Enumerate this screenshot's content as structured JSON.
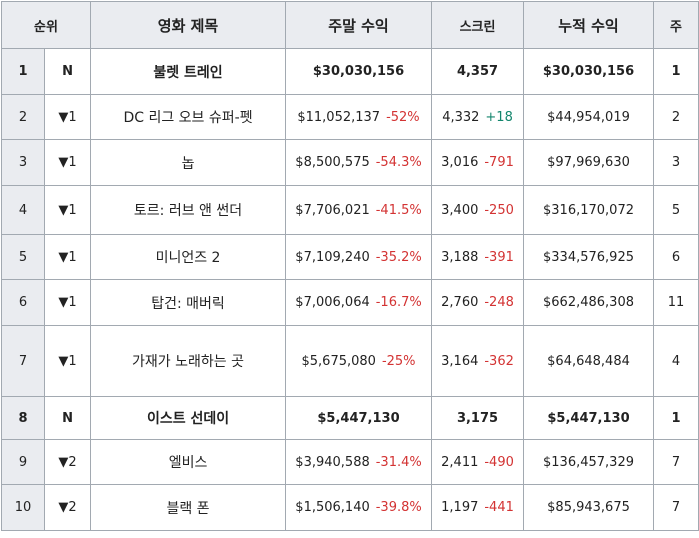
{
  "headers": {
    "rank": "순위",
    "change": "",
    "title": "영화 제목",
    "weekend": "주말 수익",
    "screens": "스크린",
    "total": "누적 수익",
    "weeks": "주"
  },
  "rows": [
    {
      "rank": "1",
      "change": "N",
      "title": "불렛 트레인",
      "weekend": "$30,030,156",
      "weekend_pct": "",
      "screens": "4,357",
      "screens_delta": "",
      "total": "$30,030,156",
      "weeks": "1",
      "is_new": true
    },
    {
      "rank": "2",
      "change": "▼1",
      "title": "DC 리그 오브 슈퍼-펫",
      "weekend": "$11,052,137",
      "weekend_pct": "-52%",
      "screens": "4,332",
      "screens_delta": "+18",
      "total": "$44,954,019",
      "weeks": "2",
      "is_new": false
    },
    {
      "rank": "3",
      "change": "▼1",
      "title": "놉",
      "weekend": "$8,500,575",
      "weekend_pct": "-54.3%",
      "screens": "3,016",
      "screens_delta": "-791",
      "total": "$97,969,630",
      "weeks": "3",
      "is_new": false
    },
    {
      "rank": "4",
      "change": "▼1",
      "title": "토르: 러브 앤 썬더",
      "weekend": "$7,706,021",
      "weekend_pct": "-41.5%",
      "screens": "3,400",
      "screens_delta": "-250",
      "total": "$316,170,072",
      "weeks": "5",
      "is_new": false
    },
    {
      "rank": "5",
      "change": "▼1",
      "title": "미니언즈 2",
      "weekend": "$7,109,240",
      "weekend_pct": "-35.2%",
      "screens": "3,188",
      "screens_delta": "-391",
      "total": "$334,576,925",
      "weeks": "6",
      "is_new": false
    },
    {
      "rank": "6",
      "change": "▼1",
      "title": "탑건: 매버릭",
      "weekend": "$7,006,064",
      "weekend_pct": "-16.7%",
      "screens": "2,760",
      "screens_delta": "-248",
      "total": "$662,486,308",
      "weeks": "11",
      "is_new": false
    },
    {
      "rank": "7",
      "change": "▼1",
      "title": "가재가 노래하는 곳",
      "weekend": "$5,675,080",
      "weekend_pct": "-25%",
      "screens": "3,164",
      "screens_delta": "-362",
      "total": "$64,648,484",
      "weeks": "4",
      "is_new": false
    },
    {
      "rank": "8",
      "change": "N",
      "title": "이스트 선데이",
      "weekend": "$5,447,130",
      "weekend_pct": "",
      "screens": "3,175",
      "screens_delta": "",
      "total": "$5,447,130",
      "weeks": "1",
      "is_new": true
    },
    {
      "rank": "9",
      "change": "▼2",
      "title": "엘비스",
      "weekend": "$3,940,588",
      "weekend_pct": "-31.4%",
      "screens": "2,411",
      "screens_delta": "-490",
      "total": "$136,457,329",
      "weeks": "7",
      "is_new": false
    },
    {
      "rank": "10",
      "change": "▼2",
      "title": "블랙 폰",
      "weekend": "$1,506,140",
      "weekend_pct": "-39.8%",
      "screens": "1,197",
      "screens_delta": "-441",
      "total": "$85,943,675",
      "weeks": "7",
      "is_new": false
    }
  ],
  "colors": {
    "negative": "#d33333",
    "positive": "#14866d",
    "header_bg": "#eaecf0",
    "border": "#a2a9b1"
  }
}
